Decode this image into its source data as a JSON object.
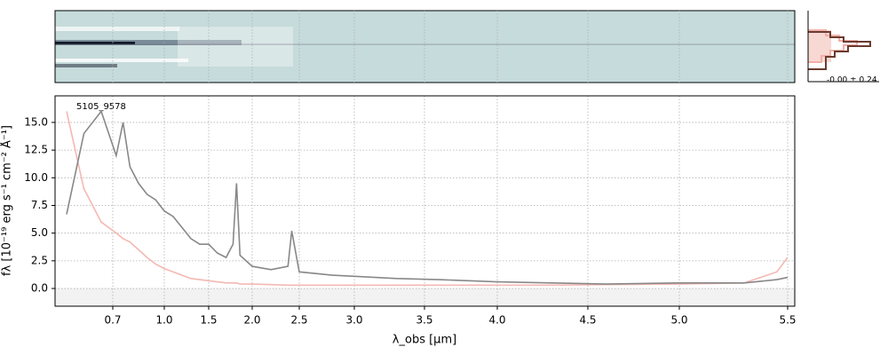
{
  "chart_data": {
    "type": "line",
    "annotation": "5105_9578",
    "xlabel": "λ_obs [μm]",
    "ylabel": "fλ [10⁻¹⁹ erg s⁻¹ cm⁻² Å⁻¹]",
    "profile_label": "-0.00 ± 0.24",
    "x": [
      0.62,
      0.65,
      0.68,
      0.72,
      0.76,
      0.8,
      0.85,
      0.9,
      0.95,
      1.0,
      1.1,
      1.2,
      1.3,
      1.4,
      1.5,
      1.6,
      1.7,
      1.78,
      1.82,
      1.86,
      2.0,
      2.2,
      2.38,
      2.42,
      2.5,
      2.8,
      3.0,
      3.3,
      3.6,
      4.0,
      4.3,
      4.6,
      5.0,
      5.3,
      5.45,
      5.5
    ],
    "series": [
      {
        "color": "#f4b8b2",
        "values": [
          16,
          9,
          6,
          5,
          4.5,
          4.2,
          3.5,
          2.8,
          2.2,
          1.8,
          1.5,
          1.2,
          0.9,
          0.8,
          0.7,
          0.6,
          0.5,
          0.5,
          0.5,
          0.4,
          0.4,
          0.35,
          0.3,
          0.3,
          0.3,
          0.3,
          0.3,
          0.3,
          0.3,
          0.3,
          0.3,
          0.35,
          0.4,
          0.5,
          1.5,
          2.8
        ]
      },
      {
        "color": "#888888",
        "values": [
          6.7,
          14,
          16,
          12,
          15,
          11,
          9.5,
          8.5,
          8,
          7,
          6.5,
          5.5,
          4.5,
          4,
          4,
          3.2,
          2.8,
          4,
          9.5,
          3,
          2,
          1.7,
          2,
          5.2,
          1.5,
          1.2,
          1.1,
          0.9,
          0.8,
          0.6,
          0.5,
          0.4,
          0.5,
          0.5,
          0.8,
          1
        ]
      }
    ],
    "xlim": [
      0.6,
      5.53
    ],
    "xticks": [
      0.7,
      {
        "value": 1,
        "label": "1.0"
      },
      1.5,
      {
        "value": 2,
        "label": "2.0"
      },
      2.5,
      {
        "value": 3,
        "label": "3.0"
      },
      3.5,
      {
        "value": 4,
        "label": "4.0"
      },
      4.5,
      {
        "value": 5,
        "label": "5.0"
      },
      5.5
    ],
    "ylim": [
      -1.6,
      17.4
    ],
    "yticks": [
      {
        "value": 0,
        "label": "0.0"
      },
      2.5,
      {
        "value": 5,
        "label": "5.0"
      },
      7.5,
      {
        "value": 10,
        "label": "10.0"
      },
      12.5,
      {
        "value": 15,
        "label": "15.0"
      }
    ],
    "grid": true
  }
}
